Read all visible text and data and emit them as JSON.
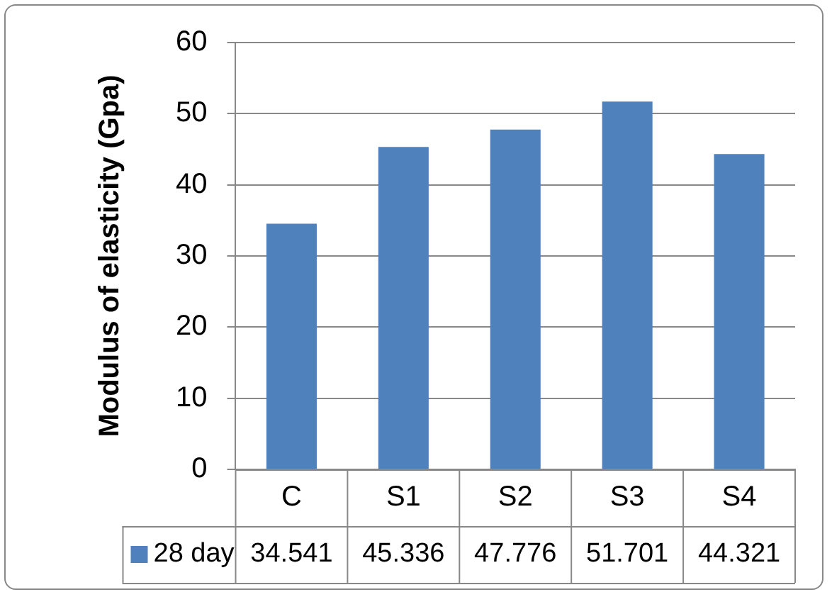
{
  "chart_data": {
    "type": "bar",
    "ylabel": "Modulus of elasticity (Gpa)",
    "categories": [
      "C",
      "S1",
      "S2",
      "S3",
      "S4"
    ],
    "series": [
      {
        "name": "28 day",
        "color": "#4f81bd",
        "values": [
          34.541,
          45.336,
          47.776,
          51.701,
          44.321
        ]
      }
    ],
    "ylim": [
      0,
      60
    ],
    "yticks": [
      0,
      10,
      20,
      30,
      40,
      50,
      60
    ],
    "grid": "y",
    "legend": "bottom",
    "data_labels": true
  }
}
